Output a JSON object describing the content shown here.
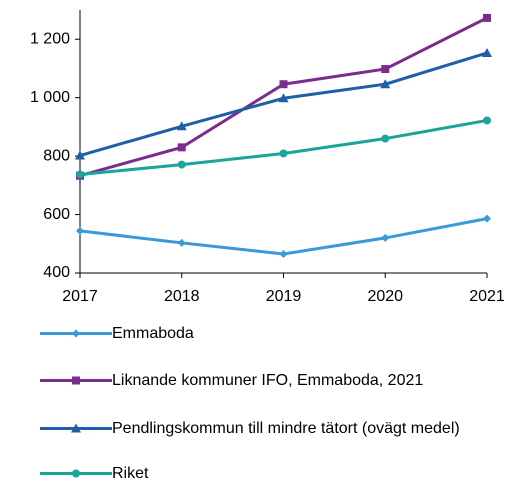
{
  "chart_data": {
    "type": "line",
    "categories": [
      "2017",
      "2018",
      "2019",
      "2020",
      "2021"
    ],
    "series": [
      {
        "name": "Emmaboda",
        "color": "#3a9ad9",
        "marker": "diamond",
        "values": [
          544,
          503,
          465,
          520,
          586
        ]
      },
      {
        "name": "Liknande kommuner IFO, Emmaboda, 2021",
        "color": "#7b2c8c",
        "marker": "square",
        "values": [
          733,
          830,
          1046,
          1098,
          1273
        ]
      },
      {
        "name": "Pendlingskommun till mindre tätort (ovägt medel)",
        "color": "#1f5fa8",
        "marker": "triangle",
        "values": [
          802,
          902,
          998,
          1046,
          1153
        ]
      },
      {
        "name": "Riket",
        "color": "#1aa59a",
        "marker": "circle",
        "values": [
          737,
          771,
          809,
          860,
          922
        ]
      }
    ],
    "ylim": [
      400,
      1300
    ],
    "yticks": [
      400,
      600,
      800,
      {
        "value": 1000,
        "label": "1 000"
      },
      {
        "value": 1200,
        "label": "1 200"
      }
    ],
    "grid": false,
    "legend": "bottom"
  }
}
